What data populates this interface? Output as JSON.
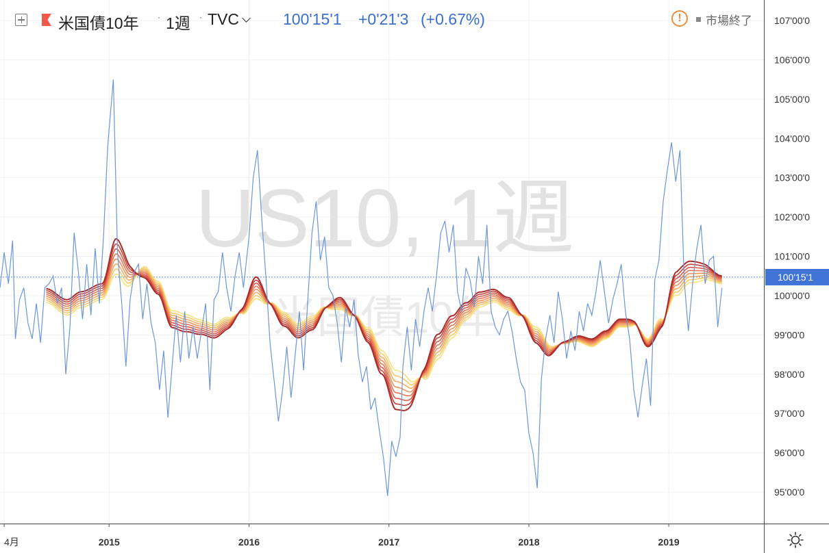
{
  "header": {
    "symbol_name": "米国債10年",
    "interval": "1週",
    "exchange": "TVC",
    "last_price": "100'15'1",
    "change": "+0'21'3",
    "change_pct": "(+0.67%)",
    "market_status": "市場終了",
    "icons": [
      "plus-square-icon",
      "red-flag-icon",
      "chevron-down-icon",
      "warning-icon",
      "settings-icon"
    ]
  },
  "watermark": {
    "main": "US10, 1週",
    "sub": "米国債10年"
  },
  "price_tag": "100'15'1",
  "colors": {
    "price_line": "#6a96d8",
    "price_tag_bg": "#3f74d6",
    "ribbon": [
      "#f6e17a",
      "#f7c969",
      "#f3ad62",
      "#ee925a",
      "#e67651",
      "#d95b46",
      "#c7423a",
      "#a72c2a"
    ]
  },
  "chart_data": {
    "type": "line",
    "y_ticks": [
      "107'00'0",
      "106'00'0",
      "105'00'0",
      "104'00'0",
      "103'00'0",
      "102'00'0",
      "101'00'0",
      "100'00'0",
      "99'00'0",
      "98'00'0",
      "97'00'0",
      "96'00'0",
      "95'00'0"
    ],
    "ylim": [
      94.3,
      107.4
    ],
    "x_ticks": [
      {
        "label": "4月",
        "x": 2014.25
      },
      {
        "label": "2015",
        "x": 2015.0
      },
      {
        "label": "2016",
        "x": 2016.0
      },
      {
        "label": "2017",
        "x": 2017.0
      },
      {
        "label": "2018",
        "x": 2018.0
      },
      {
        "label": "2019",
        "x": 2019.0
      }
    ],
    "xlim": [
      2014.22,
      2019.68
    ],
    "last_value": 100.47,
    "price_series": {
      "name": "US10",
      "points": [
        [
          2014.22,
          100.2
        ],
        [
          2014.25,
          101.1
        ],
        [
          2014.28,
          100.3
        ],
        [
          2014.31,
          101.4
        ],
        [
          2014.33,
          98.9
        ],
        [
          2014.36,
          99.9
        ],
        [
          2014.39,
          100.2
        ],
        [
          2014.42,
          99.3
        ],
        [
          2014.45,
          98.9
        ],
        [
          2014.48,
          99.8
        ],
        [
          2014.51,
          98.8
        ],
        [
          2014.54,
          100.2
        ],
        [
          2014.57,
          100.3
        ],
        [
          2014.6,
          100.5
        ],
        [
          2014.63,
          99.8
        ],
        [
          2014.66,
          100.2
        ],
        [
          2014.69,
          98.0
        ],
        [
          2014.72,
          99.2
        ],
        [
          2014.75,
          101.6
        ],
        [
          2014.78,
          100.6
        ],
        [
          2014.81,
          99.4
        ],
        [
          2014.84,
          100.8
        ],
        [
          2014.87,
          99.5
        ],
        [
          2014.9,
          101.2
        ],
        [
          2014.93,
          99.8
        ],
        [
          2014.96,
          101.5
        ],
        [
          2014.99,
          103.8
        ],
        [
          2015.03,
          105.5
        ],
        [
          2015.06,
          101.1
        ],
        [
          2015.09,
          99.8
        ],
        [
          2015.12,
          98.2
        ],
        [
          2015.15,
          99.9
        ],
        [
          2015.18,
          100.6
        ],
        [
          2015.21,
          100.8
        ],
        [
          2015.24,
          99.4
        ],
        [
          2015.27,
          100.3
        ],
        [
          2015.3,
          99.3
        ],
        [
          2015.33,
          98.8
        ],
        [
          2015.36,
          97.6
        ],
        [
          2015.39,
          98.6
        ],
        [
          2015.42,
          96.9
        ],
        [
          2015.45,
          98.2
        ],
        [
          2015.48,
          99.5
        ],
        [
          2015.51,
          98.3
        ],
        [
          2015.54,
          99.6
        ],
        [
          2015.57,
          98.4
        ],
        [
          2015.6,
          99.2
        ],
        [
          2015.63,
          98.4
        ],
        [
          2015.66,
          99.1
        ],
        [
          2015.69,
          99.8
        ],
        [
          2015.72,
          97.6
        ],
        [
          2015.75,
          99.9
        ],
        [
          2015.78,
          100.1
        ],
        [
          2015.81,
          101.1
        ],
        [
          2015.84,
          100.2
        ],
        [
          2015.87,
          99.6
        ],
        [
          2015.9,
          100.5
        ],
        [
          2015.93,
          101.1
        ],
        [
          2015.96,
          100.2
        ],
        [
          2016.0,
          101.5
        ],
        [
          2016.03,
          103.0
        ],
        [
          2016.06,
          103.7
        ],
        [
          2016.09,
          102.0
        ],
        [
          2016.12,
          100.5
        ],
        [
          2016.15,
          98.8
        ],
        [
          2016.18,
          97.8
        ],
        [
          2016.21,
          96.8
        ],
        [
          2016.24,
          97.6
        ],
        [
          2016.27,
          98.7
        ],
        [
          2016.3,
          97.4
        ],
        [
          2016.33,
          98.5
        ],
        [
          2016.36,
          99.6
        ],
        [
          2016.39,
          98.1
        ],
        [
          2016.42,
          99.9
        ],
        [
          2016.45,
          101.6
        ],
        [
          2016.48,
          102.4
        ],
        [
          2016.51,
          100.9
        ],
        [
          2016.54,
          101.5
        ],
        [
          2016.57,
          100.2
        ],
        [
          2016.6,
          100.0
        ],
        [
          2016.63,
          99.3
        ],
        [
          2016.66,
          98.3
        ],
        [
          2016.69,
          99.7
        ],
        [
          2016.72,
          99.2
        ],
        [
          2016.75,
          99.9
        ],
        [
          2016.78,
          98.5
        ],
        [
          2016.81,
          97.8
        ],
        [
          2016.84,
          98.2
        ],
        [
          2016.87,
          97.1
        ],
        [
          2016.9,
          97.4
        ],
        [
          2016.93,
          96.6
        ],
        [
          2016.96,
          95.9
        ],
        [
          2016.99,
          94.9
        ],
        [
          2017.02,
          96.3
        ],
        [
          2017.05,
          95.9
        ],
        [
          2017.08,
          96.4
        ],
        [
          2017.1,
          98.2
        ],
        [
          2017.13,
          99.2
        ],
        [
          2017.16,
          98.1
        ],
        [
          2017.19,
          99.4
        ],
        [
          2017.22,
          98.7
        ],
        [
          2017.25,
          99.6
        ],
        [
          2017.28,
          100.2
        ],
        [
          2017.31,
          99.6
        ],
        [
          2017.34,
          100.5
        ],
        [
          2017.37,
          101.6
        ],
        [
          2017.4,
          101.9
        ],
        [
          2017.43,
          101.1
        ],
        [
          2017.46,
          101.8
        ],
        [
          2017.49,
          100.1
        ],
        [
          2017.52,
          99.6
        ],
        [
          2017.55,
          100.7
        ],
        [
          2017.58,
          100.4
        ],
        [
          2017.61,
          99.7
        ],
        [
          2017.64,
          101.0
        ],
        [
          2017.67,
          100.3
        ],
        [
          2017.7,
          101.8
        ],
        [
          2017.73,
          99.6
        ],
        [
          2017.76,
          99.2
        ],
        [
          2017.79,
          99.0
        ],
        [
          2017.82,
          99.4
        ],
        [
          2017.85,
          99.6
        ],
        [
          2017.88,
          99.1
        ],
        [
          2017.91,
          98.4
        ],
        [
          2017.94,
          97.8
        ],
        [
          2017.97,
          97.6
        ],
        [
          2018.0,
          96.5
        ],
        [
          2018.03,
          96.0
        ],
        [
          2018.06,
          95.1
        ],
        [
          2018.09,
          97.9
        ],
        [
          2018.12,
          98.9
        ],
        [
          2018.15,
          99.5
        ],
        [
          2018.18,
          98.8
        ],
        [
          2018.21,
          100.1
        ],
        [
          2018.24,
          99.4
        ],
        [
          2018.27,
          98.4
        ],
        [
          2018.3,
          99.1
        ],
        [
          2018.33,
          98.6
        ],
        [
          2018.36,
          99.6
        ],
        [
          2018.39,
          99.1
        ],
        [
          2018.42,
          99.8
        ],
        [
          2018.45,
          99.5
        ],
        [
          2018.48,
          100.1
        ],
        [
          2018.51,
          100.9
        ],
        [
          2018.54,
          100.1
        ],
        [
          2018.57,
          99.3
        ],
        [
          2018.6,
          99.9
        ],
        [
          2018.63,
          100.3
        ],
        [
          2018.66,
          100.8
        ],
        [
          2018.69,
          99.6
        ],
        [
          2018.72,
          98.9
        ],
        [
          2018.75,
          97.6
        ],
        [
          2018.78,
          96.9
        ],
        [
          2018.81,
          97.7
        ],
        [
          2018.84,
          98.4
        ],
        [
          2018.87,
          97.2
        ],
        [
          2018.9,
          100.4
        ],
        [
          2018.93,
          100.9
        ],
        [
          2018.96,
          102.4
        ],
        [
          2018.99,
          103.2
        ],
        [
          2019.02,
          103.9
        ],
        [
          2019.05,
          102.9
        ],
        [
          2019.08,
          103.7
        ],
        [
          2019.11,
          100.4
        ],
        [
          2019.14,
          99.1
        ],
        [
          2019.17,
          100.3
        ],
        [
          2019.2,
          101.2
        ],
        [
          2019.23,
          101.8
        ],
        [
          2019.26,
          100.3
        ],
        [
          2019.29,
          100.9
        ],
        [
          2019.32,
          101.0
        ],
        [
          2019.35,
          99.2
        ],
        [
          2019.38,
          100.2
        ]
      ]
    },
    "ribbon_mean": [
      [
        2014.55,
        100.0
      ],
      [
        2014.7,
        99.7
      ],
      [
        2014.8,
        99.9
      ],
      [
        2014.95,
        100.1
      ],
      [
        2015.05,
        101.0
      ],
      [
        2015.15,
        100.5
      ],
      [
        2015.25,
        100.6
      ],
      [
        2015.35,
        100.2
      ],
      [
        2015.45,
        99.4
      ],
      [
        2015.55,
        99.3
      ],
      [
        2015.65,
        99.2
      ],
      [
        2015.75,
        99.1
      ],
      [
        2015.85,
        99.3
      ],
      [
        2015.95,
        99.6
      ],
      [
        2016.05,
        100.2
      ],
      [
        2016.15,
        99.8
      ],
      [
        2016.25,
        99.4
      ],
      [
        2016.35,
        99.1
      ],
      [
        2016.45,
        99.3
      ],
      [
        2016.55,
        99.7
      ],
      [
        2016.65,
        99.8
      ],
      [
        2016.75,
        99.5
      ],
      [
        2016.85,
        99.0
      ],
      [
        2016.95,
        98.3
      ],
      [
        2017.05,
        97.6
      ],
      [
        2017.15,
        97.5
      ],
      [
        2017.25,
        98.0
      ],
      [
        2017.35,
        98.7
      ],
      [
        2017.45,
        99.2
      ],
      [
        2017.55,
        99.6
      ],
      [
        2017.65,
        99.9
      ],
      [
        2017.75,
        100.0
      ],
      [
        2017.85,
        99.8
      ],
      [
        2017.95,
        99.5
      ],
      [
        2018.05,
        99.0
      ],
      [
        2018.15,
        98.6
      ],
      [
        2018.25,
        98.8
      ],
      [
        2018.35,
        98.9
      ],
      [
        2018.45,
        98.8
      ],
      [
        2018.55,
        99.0
      ],
      [
        2018.65,
        99.3
      ],
      [
        2018.75,
        99.3
      ],
      [
        2018.85,
        98.8
      ],
      [
        2018.95,
        99.3
      ],
      [
        2019.05,
        100.3
      ],
      [
        2019.15,
        100.6
      ],
      [
        2019.25,
        100.6
      ],
      [
        2019.38,
        100.4
      ]
    ],
    "ribbon_spread": [
      [
        2014.55,
        0.35
      ],
      [
        2014.75,
        0.4
      ],
      [
        2014.95,
        0.4
      ],
      [
        2015.05,
        0.9
      ],
      [
        2015.15,
        0.7
      ],
      [
        2015.3,
        0.3
      ],
      [
        2015.5,
        0.45
      ],
      [
        2015.7,
        0.35
      ],
      [
        2015.9,
        0.35
      ],
      [
        2016.05,
        0.55
      ],
      [
        2016.2,
        0.35
      ],
      [
        2016.4,
        0.35
      ],
      [
        2016.6,
        0.3
      ],
      [
        2016.8,
        0.3
      ],
      [
        2016.95,
        0.6
      ],
      [
        2017.05,
        1.0
      ],
      [
        2017.2,
        0.8
      ],
      [
        2017.4,
        0.6
      ],
      [
        2017.6,
        0.4
      ],
      [
        2017.8,
        0.3
      ],
      [
        2018.0,
        0.35
      ],
      [
        2018.1,
        0.45
      ],
      [
        2018.3,
        0.15
      ],
      [
        2018.5,
        0.2
      ],
      [
        2018.7,
        0.2
      ],
      [
        2018.85,
        0.2
      ],
      [
        2019.0,
        0.8
      ],
      [
        2019.15,
        0.55
      ],
      [
        2019.38,
        0.2
      ]
    ],
    "ribbon_phase": [
      [
        2014.55,
        -1
      ],
      [
        2014.9,
        -1
      ],
      [
        2015.1,
        -1
      ],
      [
        2015.3,
        1
      ],
      [
        2015.55,
        1
      ],
      [
        2015.8,
        1
      ],
      [
        2016.05,
        -1
      ],
      [
        2016.25,
        1
      ],
      [
        2016.45,
        1
      ],
      [
        2016.65,
        -1
      ],
      [
        2016.85,
        1
      ],
      [
        2017.1,
        1
      ],
      [
        2017.35,
        -1
      ],
      [
        2017.6,
        -1
      ],
      [
        2017.85,
        -1
      ],
      [
        2018.05,
        1
      ],
      [
        2018.4,
        -1
      ],
      [
        2018.7,
        -1
      ],
      [
        2018.85,
        1
      ],
      [
        2019.1,
        -1
      ],
      [
        2019.38,
        -1
      ]
    ]
  }
}
